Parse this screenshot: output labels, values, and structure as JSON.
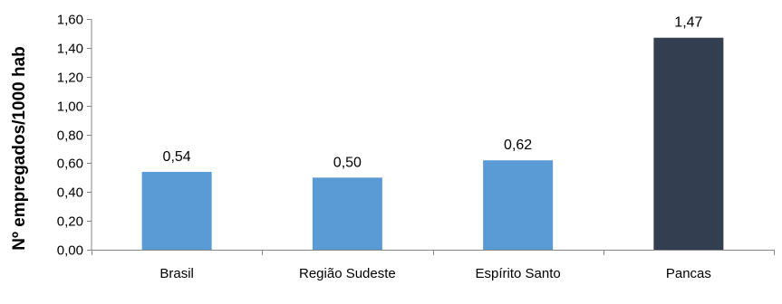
{
  "chart_data": {
    "type": "bar",
    "title": "",
    "xlabel": "",
    "ylabel": "Nº empregados/1000 hab",
    "categories": [
      "Brasil",
      "Região Sudeste",
      "Espírito Santo",
      "Pancas"
    ],
    "values": [
      0.54,
      0.5,
      0.62,
      1.47
    ],
    "value_labels": [
      "0,54",
      "0,50",
      "0,62",
      "1,47"
    ],
    "ylim": [
      0,
      1.6
    ],
    "yticks": [
      0,
      0.2,
      0.4,
      0.6,
      0.8,
      1.0,
      1.2,
      1.4,
      1.6
    ],
    "ytick_labels": [
      "0,00",
      "0,20",
      "0,40",
      "0,60",
      "0,80",
      "1,00",
      "1,20",
      "1,40",
      "1,60"
    ],
    "bar_colors": [
      "#5B9BD5",
      "#5B9BD5",
      "#5B9BD5",
      "#333F50"
    ],
    "grid": false,
    "legend": "none"
  }
}
